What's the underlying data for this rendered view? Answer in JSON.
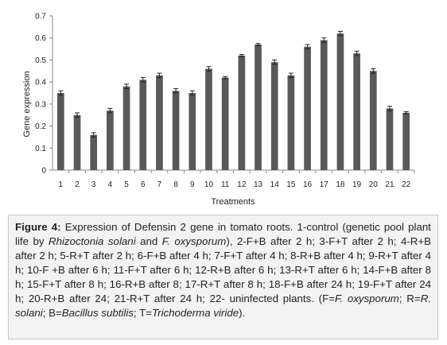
{
  "chart_data": {
    "type": "bar",
    "categories": [
      "1",
      "2",
      "3",
      "4",
      "5",
      "6",
      "7",
      "8",
      "9",
      "10",
      "11",
      "12",
      "13",
      "14",
      "15",
      "16",
      "17",
      "18",
      "19",
      "20",
      "21",
      "22"
    ],
    "values": [
      0.35,
      0.25,
      0.16,
      0.27,
      0.38,
      0.41,
      0.43,
      0.36,
      0.35,
      0.46,
      0.42,
      0.52,
      0.57,
      0.49,
      0.43,
      0.56,
      0.59,
      0.62,
      0.53,
      0.45,
      0.28,
      0.26
    ],
    "errors": [
      0.01,
      0.01,
      0.01,
      0.01,
      0.01,
      0.01,
      0.01,
      0.01,
      0.01,
      0.01,
      0.005,
      0.005,
      0.005,
      0.01,
      0.01,
      0.01,
      0.01,
      0.01,
      0.01,
      0.01,
      0.01,
      0.005
    ],
    "xlabel": "Treatments",
    "ylabel": "Gene expression",
    "ylim": [
      0,
      0.7
    ],
    "yticks": [
      "0",
      "0.1",
      "0.2",
      "0.3",
      "0.4",
      "0.5",
      "0.6",
      "0.7"
    ],
    "grid": false,
    "bar_color": "#595959"
  },
  "caption": {
    "label": "Figure 4:",
    "text_1": " Expression of Defensin 2 gene in tomato roots. 1-control (genetic pool plant life by ",
    "species_1": "Rhizoctonia solani",
    "text_2": " and ",
    "species_2": "F. oxysporum",
    "text_3": "), 2-F+B after 2 h; 3-F+T after 2 h; 4-R+B after 2 h; 5-R+T after 2 h; 6-F+B after 4 h; 7-F+T after 4 h; 8-R+B after 4 h; 9-R+T after 4 h; 10-F +B after 6 h; 11-F+T after 6 h; 12-R+B after 6 h; 13-R+T after 6 h; 14-F+B after 8 h; 15-F+T after 8 h; 16-R+B after 8; 17-R+T after 8 h; 18-F+B after 24 h; 19-F+T after 24 h; 20-R+B after 24; 21-R+T after 24 h; 22- uninfected plants. (F=",
    "species_3": "F. oxysporum",
    "text_4": "; R=",
    "species_4": "R. solani",
    "text_5": "; B=",
    "species_5": "Bacillus subtilis",
    "text_6": "; T=",
    "species_6": "Trichoderma viride",
    "text_7": ")."
  }
}
